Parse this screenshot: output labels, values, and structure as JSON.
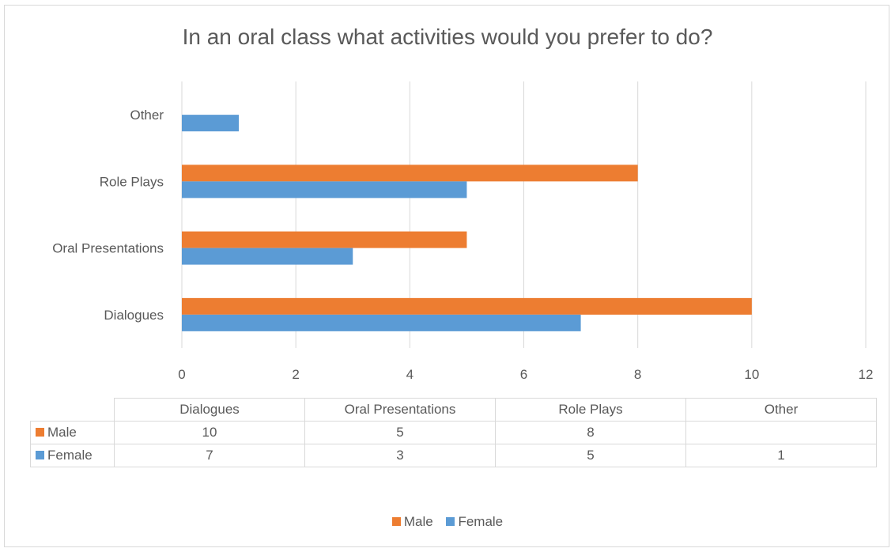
{
  "chart_data": {
    "type": "bar",
    "orientation": "horizontal",
    "title": "In an oral class what activities would you prefer to do?",
    "categories": [
      "Dialogues",
      "Oral Presentations",
      "Role Plays",
      "Other"
    ],
    "series": [
      {
        "name": "Male",
        "color": "#ed7d31",
        "values": [
          10,
          5,
          8,
          null
        ]
      },
      {
        "name": "Female",
        "color": "#5b9bd5",
        "values": [
          7,
          3,
          5,
          1
        ]
      }
    ],
    "xlim": [
      0,
      12
    ],
    "xticks": [
      0,
      2,
      4,
      6,
      8,
      10,
      12
    ],
    "grid": true,
    "legend": "bottom",
    "data_table": {
      "headers": [
        "Dialogues",
        "Oral Presentations",
        "Role Plays",
        "Other"
      ],
      "rows": [
        {
          "label": "Male",
          "cells": [
            "10",
            "5",
            "8",
            ""
          ]
        },
        {
          "label": "Female",
          "cells": [
            "7",
            "3",
            "5",
            "1"
          ]
        }
      ]
    }
  }
}
